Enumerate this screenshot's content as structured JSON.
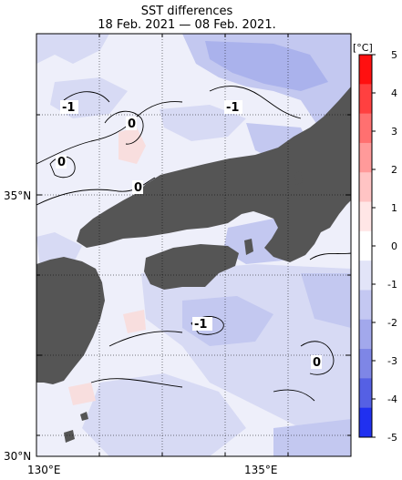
{
  "title": {
    "line1": "SST differences",
    "line2": "18 Feb. 2021 — 08 Feb. 2021."
  },
  "axes": {
    "lat_labels": [
      "35°N",
      "30°N"
    ],
    "lon_labels": [
      "130°E",
      "135°E"
    ]
  },
  "colorbar": {
    "unit": "[°C]",
    "ticks": [
      "5",
      "4",
      "3",
      "2",
      "1",
      "0",
      "-1",
      "-2",
      "-3",
      "-4",
      "-5"
    ],
    "colors": [
      "#ff1010",
      "#ff4040",
      "#ff7070",
      "#ff9a9a",
      "#ffc4c4",
      "#ffe6e6",
      "#ffffff",
      "#e2e4f8",
      "#c4c8f2",
      "#a2a8ec",
      "#7e86e6",
      "#5560e4",
      "#2030f0"
    ]
  },
  "contour_labels": [
    "-1",
    "-1",
    "0",
    "0",
    "0",
    "-1",
    "0"
  ],
  "colors": {
    "land": "#555555",
    "sea_base": "#eeeffa",
    "cool_light": "#d7daf4",
    "cool_mid": "#c3c8f0",
    "cool_strong": "#aab2ec",
    "warm_light": "#f8dede"
  }
}
